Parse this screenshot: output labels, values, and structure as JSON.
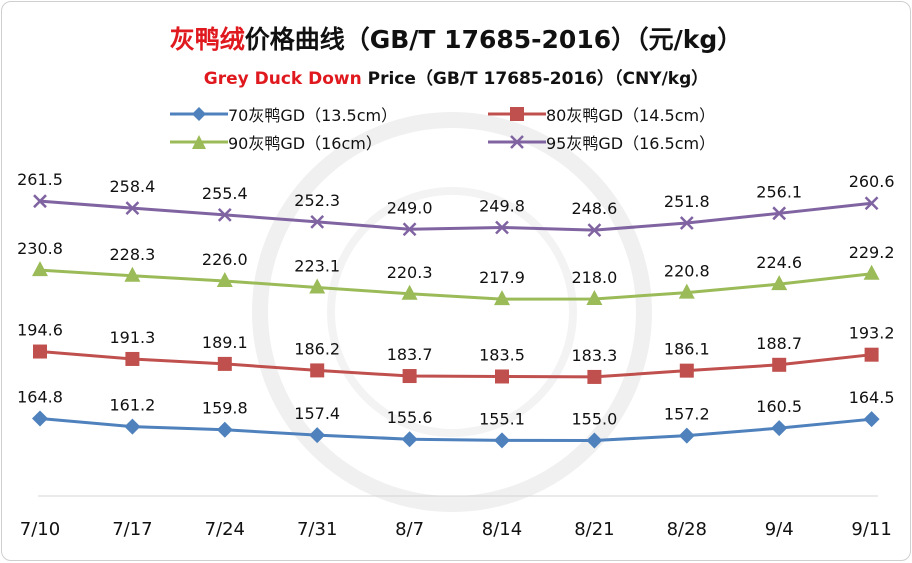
{
  "title_main_red": "灰鸭绒",
  "title_main_rest": "价格曲线（GB/T 17685-2016）（元/kg）",
  "title_sub_red": "Grey Duck Down",
  "title_sub_rest": " Price（GB/T 17685-2016）（CNY/kg）",
  "colors": {
    "title_accent": "#e0191f",
    "series_70": "#4f81bd",
    "series_80": "#c0504d",
    "series_90": "#9bbb59",
    "series_95": "#8064a2"
  },
  "chart_data": {
    "type": "line",
    "title": "灰鸭绒价格曲线（GB/T 17685-2016）（元/kg）",
    "subtitle": "Grey Duck Down Price（GB/T 17685-2016）（CNY/kg）",
    "xlabel": "",
    "ylabel": "",
    "ylim": [
      120,
      280
    ],
    "grid": false,
    "legend_position": "top",
    "categories": [
      "7/10",
      "7/17",
      "7/24",
      "7/31",
      "8/7",
      "8/14",
      "8/21",
      "8/28",
      "9/4",
      "9/11"
    ],
    "series": [
      {
        "name": "70灰鸭GD（13.5cm）",
        "marker": "diamond",
        "color": "#4f81bd",
        "values": [
          164.8,
          161.2,
          159.8,
          157.4,
          155.6,
          155.1,
          155.0,
          157.2,
          160.5,
          164.5
        ],
        "labels": [
          "164.8",
          "161.2",
          "159.8",
          "157.4",
          "155.6",
          "155.1",
          "155.0",
          "157.2",
          "160.5",
          "164.5"
        ]
      },
      {
        "name": "80灰鸭GD（14.5cm）",
        "marker": "square",
        "color": "#c0504d",
        "values": [
          194.6,
          191.3,
          189.1,
          186.2,
          183.7,
          183.5,
          183.3,
          186.1,
          188.7,
          193.2
        ],
        "labels": [
          "194.6",
          "191.3",
          "189.1",
          "186.2",
          "183.7",
          "183.5",
          "183.3",
          "186.1",
          "188.7",
          "193.2"
        ]
      },
      {
        "name": "90灰鸭GD（16cm）",
        "marker": "triangle",
        "color": "#9bbb59",
        "values": [
          230.8,
          228.3,
          226.0,
          223.1,
          220.3,
          217.9,
          218.0,
          220.8,
          224.6,
          229.2
        ],
        "labels": [
          "230.8",
          "228.3",
          "226.0",
          "223.1",
          "220.3",
          "217.9",
          "218.0",
          "220.8",
          "224.6",
          "229.2"
        ]
      },
      {
        "name": "95灰鸭GD（16.5cm）",
        "marker": "x",
        "color": "#8064a2",
        "values": [
          261.5,
          258.4,
          255.4,
          252.3,
          249.0,
          249.8,
          248.6,
          251.8,
          256.1,
          260.6
        ],
        "labels": [
          "261.5",
          "258.4",
          "255.4",
          "252.3",
          "249.0",
          "249.8",
          "248.6",
          "251.8",
          "256.1",
          "260.6"
        ]
      }
    ]
  }
}
